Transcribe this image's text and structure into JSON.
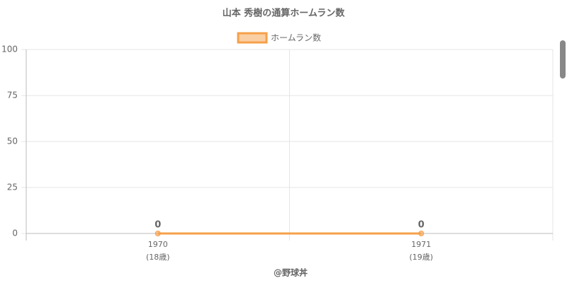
{
  "chart_data": {
    "type": "line",
    "title": "山本 秀樹の通算ホームラン数",
    "categories": [
      "1970",
      "1971"
    ],
    "category_sublabels": [
      "(18歳)",
      "(19歳)"
    ],
    "series": [
      {
        "name": "ホームラン数",
        "color": "#f5a04a",
        "values": [
          0,
          0
        ]
      }
    ],
    "ylim": [
      0,
      100
    ],
    "yticks": [
      0,
      25,
      50,
      75,
      100
    ],
    "grid": true,
    "legend": "top",
    "footer": "@野球丼"
  }
}
